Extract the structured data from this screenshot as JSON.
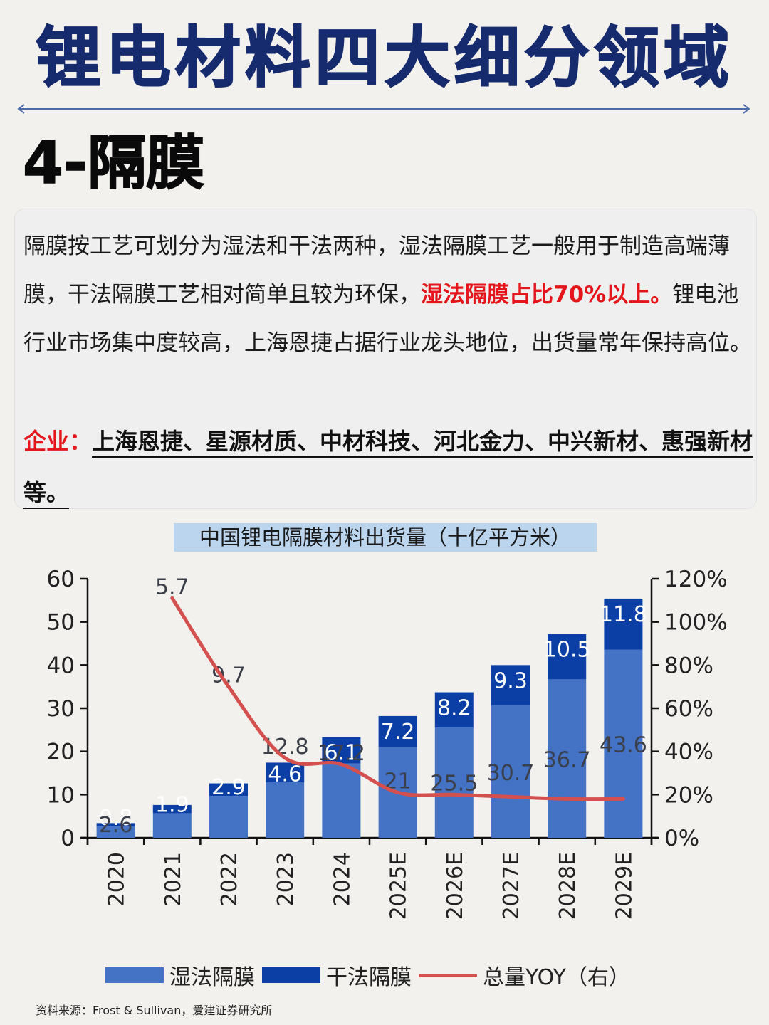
{
  "header": {
    "title": "锂电材料四大细分领域",
    "section_title": "4-隔膜"
  },
  "description": {
    "text_before": "隔膜按工艺可划分为湿法和干法两种，湿法隔膜工艺一般用于制造高端薄膜，干法隔膜工艺相对简单且较为环保，",
    "highlight": "湿法隔膜占比70%以上。",
    "text_after": "锂电池行业市场集中度较高，上海恩捷占据行业龙头地位，出货量常年保持高位。",
    "companies_label": "企业：",
    "companies": "上海恩捷、星源材质、中材科技、河北金力、中兴新材、惠强新材等。"
  },
  "colors": {
    "title": "#162a6e",
    "highlight_red": "#e4161c",
    "wet_bar": "#4472c4",
    "dry_bar": "#0b3fa6",
    "yoy_line": "#d4504f",
    "chart_title_bg": "#bcd5ee"
  },
  "chart_data": {
    "type": "bar",
    "stacked": true,
    "title": "中国锂电隔膜材料出货量（十亿平方米）",
    "categories": [
      "2020",
      "2021",
      "2022",
      "2023",
      "2024",
      "2025E",
      "2026E",
      "2027E",
      "2028E",
      "2029E"
    ],
    "series": [
      {
        "name": "湿法隔膜",
        "type": "bar",
        "axis": "left",
        "values": [
          2.6,
          5.7,
          9.7,
          12.8,
          17.2,
          21,
          25.5,
          30.7,
          36.7,
          43.6
        ]
      },
      {
        "name": "干法隔膜",
        "type": "bar",
        "axis": "left",
        "values": [
          0.8,
          1.9,
          2.9,
          4.6,
          6.1,
          7.2,
          8.2,
          9.3,
          10.5,
          11.8
        ]
      },
      {
        "name": "总量YOY（右）",
        "type": "line",
        "axis": "right",
        "values": [
          null,
          111,
          70,
          37,
          34,
          21,
          20,
          19,
          18,
          18
        ]
      }
    ],
    "ylim_left": [
      0,
      60
    ],
    "yticks_left": [
      "0",
      "10",
      "20",
      "30",
      "40",
      "50",
      "60"
    ],
    "ylim_right": [
      0,
      120
    ],
    "yticks_right": [
      "0%",
      "20%",
      "40%",
      "60%",
      "80%",
      "100%",
      "120%"
    ],
    "xlabel": "",
    "ylabel": "",
    "grid": false,
    "legend_position": "bottom"
  },
  "legend": {
    "items": [
      {
        "label": "湿法隔膜"
      },
      {
        "label": "干法隔膜"
      },
      {
        "label": "总量YOY（右）"
      }
    ]
  },
  "footer": {
    "source": "资料来源：Frost & Sullivan，爱建证券研究所"
  }
}
